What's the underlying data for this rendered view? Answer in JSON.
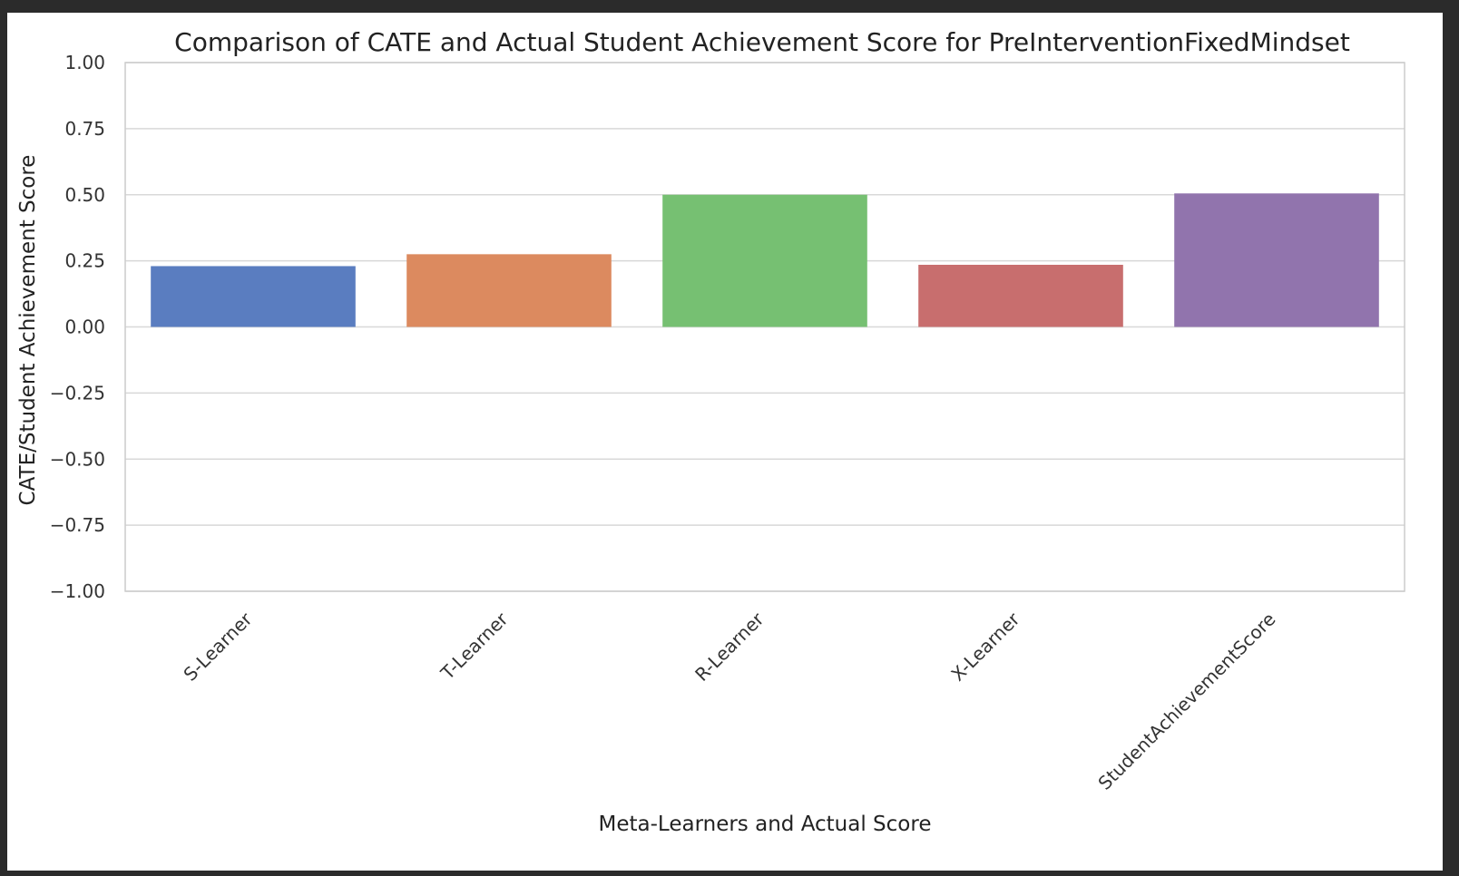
{
  "chart_data": {
    "type": "bar",
    "title": "Comparison of CATE and Actual Student Achievement Score for PreInterventionFixedMindset",
    "xlabel": "Meta-Learners and Actual Score",
    "ylabel": "CATE/Student Achievement Score",
    "categories": [
      "S-Learner",
      "T-Learner",
      "R-Learner",
      "X-Learner",
      "StudentAchievementScore"
    ],
    "values": [
      0.23,
      0.275,
      0.5,
      0.235,
      0.505
    ],
    "colors": [
      "#5a7dc0",
      "#dc8a5f",
      "#76c072",
      "#c86e6e",
      "#9174ad"
    ],
    "ylim": [
      -1.0,
      1.0
    ],
    "yticks": [
      "1.00",
      "0.75",
      "0.50",
      "0.25",
      "0.00",
      "−0.25",
      "−0.50",
      "−0.75",
      "−1.00"
    ],
    "ytick_values": [
      1.0,
      0.75,
      0.5,
      0.25,
      0.0,
      -0.25,
      -0.5,
      -0.75,
      -1.0
    ],
    "grid": true,
    "legend": "none"
  }
}
